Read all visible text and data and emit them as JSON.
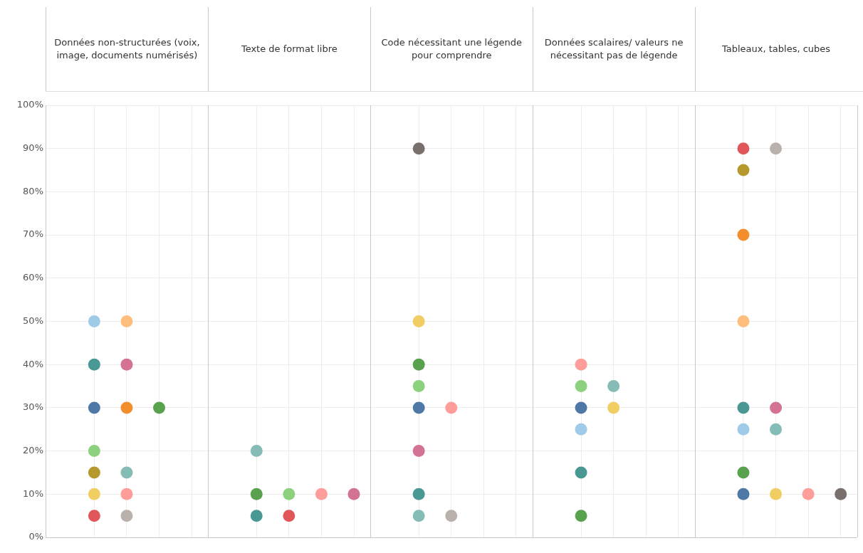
{
  "chart_data": {
    "type": "scatter",
    "annotations": [
      "Données non-structurées (voix, image, documents numérisés)",
      "Texte de format libre",
      "Code nécessitant une légende pour comprendre",
      "Données scalaires/ valeurs ne nécessitant pas de légende",
      "Tableaux, tables, cubes"
    ],
    "categories": [
      null,
      null,
      null,
      null,
      null,
      null,
      null,
      null,
      null,
      null,
      null,
      null,
      null,
      null,
      null,
      null,
      null,
      null,
      null,
      null,
      null,
      null,
      null,
      null,
      null
    ],
    "series": [
      {
        "color": "#4e79a7",
        "values": [
          null,
          30,
          null,
          null,
          null,
          null,
          null,
          null,
          null,
          null,
          null,
          30,
          null,
          null,
          null,
          null,
          30,
          null,
          null,
          null,
          null,
          10,
          null,
          null,
          null
        ]
      },
      {
        "color": "#a0cbe8",
        "values": [
          null,
          50,
          null,
          null,
          null,
          null,
          null,
          null,
          null,
          null,
          null,
          null,
          null,
          null,
          null,
          null,
          25,
          null,
          null,
          null,
          null,
          25,
          null,
          null,
          null
        ]
      },
      {
        "color": "#f28e2b",
        "values": [
          null,
          null,
          30,
          null,
          null,
          null,
          null,
          null,
          null,
          null,
          null,
          null,
          null,
          null,
          null,
          null,
          null,
          null,
          null,
          null,
          null,
          70,
          null,
          null,
          null
        ]
      },
      {
        "color": "#ffbe7d",
        "values": [
          null,
          null,
          50,
          null,
          null,
          null,
          null,
          null,
          null,
          null,
          null,
          null,
          null,
          null,
          null,
          null,
          null,
          null,
          null,
          null,
          null,
          50,
          null,
          null,
          null
        ]
      },
      {
        "color": "#59a14f",
        "values": [
          null,
          null,
          null,
          30,
          null,
          null,
          10,
          null,
          null,
          null,
          null,
          40,
          null,
          null,
          null,
          null,
          5,
          null,
          null,
          null,
          null,
          15,
          null,
          null,
          null
        ]
      },
      {
        "color": "#8cd17d",
        "values": [
          null,
          20,
          null,
          null,
          null,
          null,
          null,
          10,
          null,
          null,
          null,
          35,
          null,
          null,
          null,
          null,
          35,
          null,
          null,
          null,
          null,
          null,
          null,
          null,
          null
        ]
      },
      {
        "color": "#b6992d",
        "values": [
          null,
          15,
          null,
          null,
          null,
          null,
          null,
          null,
          null,
          null,
          null,
          null,
          null,
          null,
          null,
          null,
          null,
          null,
          null,
          null,
          null,
          85,
          null,
          null,
          null
        ]
      },
      {
        "color": "#f1ce63",
        "values": [
          null,
          10,
          null,
          null,
          null,
          null,
          null,
          null,
          null,
          null,
          null,
          50,
          null,
          null,
          null,
          null,
          null,
          30,
          null,
          null,
          null,
          null,
          10,
          null,
          null
        ]
      },
      {
        "color": "#499894",
        "values": [
          null,
          40,
          null,
          null,
          null,
          null,
          5,
          null,
          null,
          null,
          null,
          10,
          null,
          null,
          null,
          null,
          15,
          null,
          null,
          null,
          null,
          30,
          null,
          null,
          null
        ]
      },
      {
        "color": "#86bcb6",
        "values": [
          null,
          null,
          15,
          null,
          null,
          null,
          20,
          null,
          null,
          null,
          null,
          5,
          null,
          null,
          null,
          null,
          null,
          35,
          null,
          null,
          null,
          null,
          25,
          null,
          null
        ]
      },
      {
        "color": "#e15759",
        "values": [
          null,
          5,
          null,
          null,
          null,
          null,
          null,
          5,
          null,
          null,
          null,
          null,
          null,
          null,
          null,
          null,
          null,
          null,
          null,
          null,
          null,
          90,
          null,
          null,
          null
        ]
      },
      {
        "color": "#ff9d9a",
        "values": [
          null,
          null,
          10,
          null,
          null,
          null,
          null,
          null,
          10,
          null,
          null,
          null,
          30,
          null,
          null,
          null,
          40,
          null,
          null,
          null,
          null,
          null,
          null,
          10,
          null
        ]
      },
      {
        "color": "#79706e",
        "values": [
          null,
          null,
          null,
          null,
          null,
          null,
          null,
          null,
          null,
          null,
          null,
          90,
          null,
          null,
          null,
          null,
          null,
          null,
          null,
          null,
          null,
          null,
          null,
          null,
          10
        ]
      },
      {
        "color": "#bab0ac",
        "values": [
          null,
          null,
          5,
          null,
          null,
          null,
          null,
          null,
          null,
          null,
          null,
          null,
          5,
          null,
          null,
          null,
          null,
          null,
          null,
          null,
          null,
          null,
          90,
          null,
          null
        ]
      },
      {
        "color": "#d37295",
        "values": [
          null,
          null,
          40,
          null,
          null,
          null,
          null,
          null,
          null,
          10,
          null,
          20,
          null,
          null,
          null,
          null,
          null,
          null,
          null,
          null,
          null,
          null,
          30,
          null,
          null
        ]
      }
    ],
    "ylim": [
      0,
      100
    ],
    "yticks": [
      {
        "value": 0,
        "label": "0%"
      },
      {
        "value": 10,
        "label": "10%"
      },
      {
        "value": 20,
        "label": "20%"
      },
      {
        "value": 30,
        "label": "30%"
      },
      {
        "value": 40,
        "label": "40%"
      },
      {
        "value": 50,
        "label": "50%"
      },
      {
        "value": 60,
        "label": "60%"
      },
      {
        "value": 70,
        "label": "70%"
      },
      {
        "value": 80,
        "label": "80%"
      },
      {
        "value": 90,
        "label": "90%"
      },
      {
        "value": 100,
        "label": "100%"
      }
    ],
    "grid": true,
    "tick_labels": "y",
    "marker": "circle"
  }
}
